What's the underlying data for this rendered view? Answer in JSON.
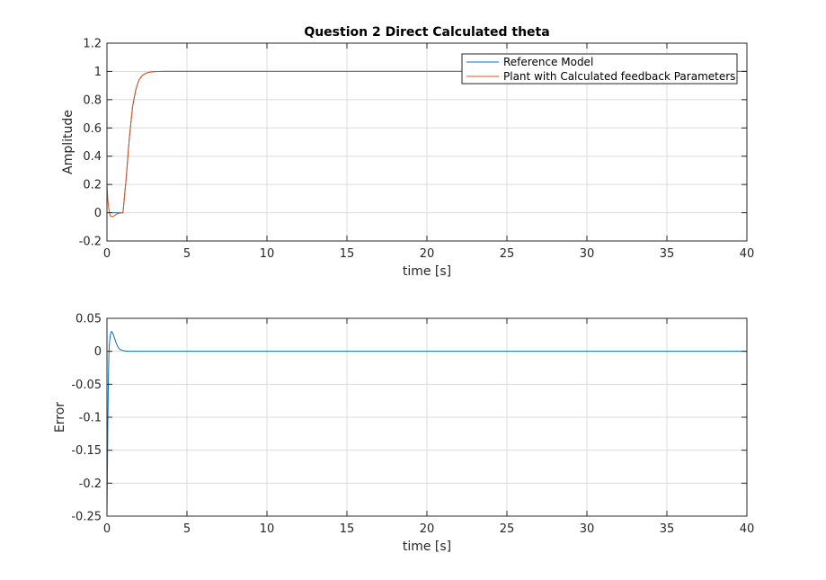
{
  "chart_data": [
    {
      "type": "line",
      "title": "Question 2 Direct Calculated theta",
      "xlabel": "time [s]",
      "ylabel": "Amplitude",
      "xlim": [
        0,
        40
      ],
      "ylim": [
        -0.2,
        1.2
      ],
      "xticks": [
        "0",
        "5",
        "10",
        "15",
        "20",
        "25",
        "30",
        "35",
        "40"
      ],
      "yticks": [
        "-0.2",
        "0",
        "0.2",
        "0.4",
        "0.6",
        "0.8",
        "1",
        "1.2"
      ],
      "grid": true,
      "legend_location": "top-right",
      "series": [
        {
          "name": "Reference Model",
          "color": "#0072BD",
          "x": [
            0,
            1.0,
            1.2,
            1.4,
            1.6,
            1.8,
            2.0,
            2.2,
            2.4,
            2.6,
            2.8,
            3.0,
            3.5,
            4,
            40
          ],
          "y": [
            0,
            0,
            0.24,
            0.53,
            0.75,
            0.87,
            0.94,
            0.97,
            0.985,
            0.993,
            0.997,
            0.999,
            1,
            1,
            1
          ]
        },
        {
          "name": "Plant with Calculated feedback Parameters",
          "color": "#D95319",
          "x": [
            0,
            0.05,
            0.1,
            0.2,
            0.3,
            0.4,
            0.5,
            0.6,
            0.8,
            1.0,
            1.2,
            1.4,
            1.6,
            1.8,
            2.0,
            2.2,
            2.4,
            2.6,
            2.8,
            3.0,
            3.5,
            4,
            40
          ],
          "y": [
            0.2,
            0.1,
            0.04,
            -0.02,
            -0.028,
            -0.025,
            -0.018,
            -0.01,
            -0.003,
            0,
            0.24,
            0.53,
            0.75,
            0.87,
            0.94,
            0.97,
            0.985,
            0.993,
            0.997,
            0.999,
            1,
            1,
            1
          ]
        }
      ]
    },
    {
      "type": "line",
      "title": "",
      "xlabel": "time [s]",
      "ylabel": "Error",
      "xlim": [
        0,
        40
      ],
      "ylim": [
        -0.25,
        0.05
      ],
      "xticks": [
        "0",
        "5",
        "10",
        "15",
        "20",
        "25",
        "30",
        "35",
        "40"
      ],
      "yticks": [
        "-0.25",
        "-0.2",
        "-0.15",
        "-0.1",
        "-0.05",
        "0",
        "0.05"
      ],
      "grid": true,
      "series": [
        {
          "color": "#0072BD",
          "x": [
            0,
            0.02,
            0.05,
            0.08,
            0.1,
            0.12,
            0.15,
            0.2,
            0.25,
            0.3,
            0.35,
            0.4,
            0.5,
            0.6,
            0.7,
            0.8,
            1.0,
            1.2,
            1.5,
            2.0,
            40
          ],
          "y": [
            -0.25,
            -0.2,
            -0.12,
            -0.06,
            -0.03,
            -0.005,
            0.01,
            0.023,
            0.029,
            0.03,
            0.028,
            0.025,
            0.018,
            0.011,
            0.006,
            0.003,
            0.001,
            0.0003,
            0,
            0,
            0
          ]
        }
      ]
    }
  ]
}
